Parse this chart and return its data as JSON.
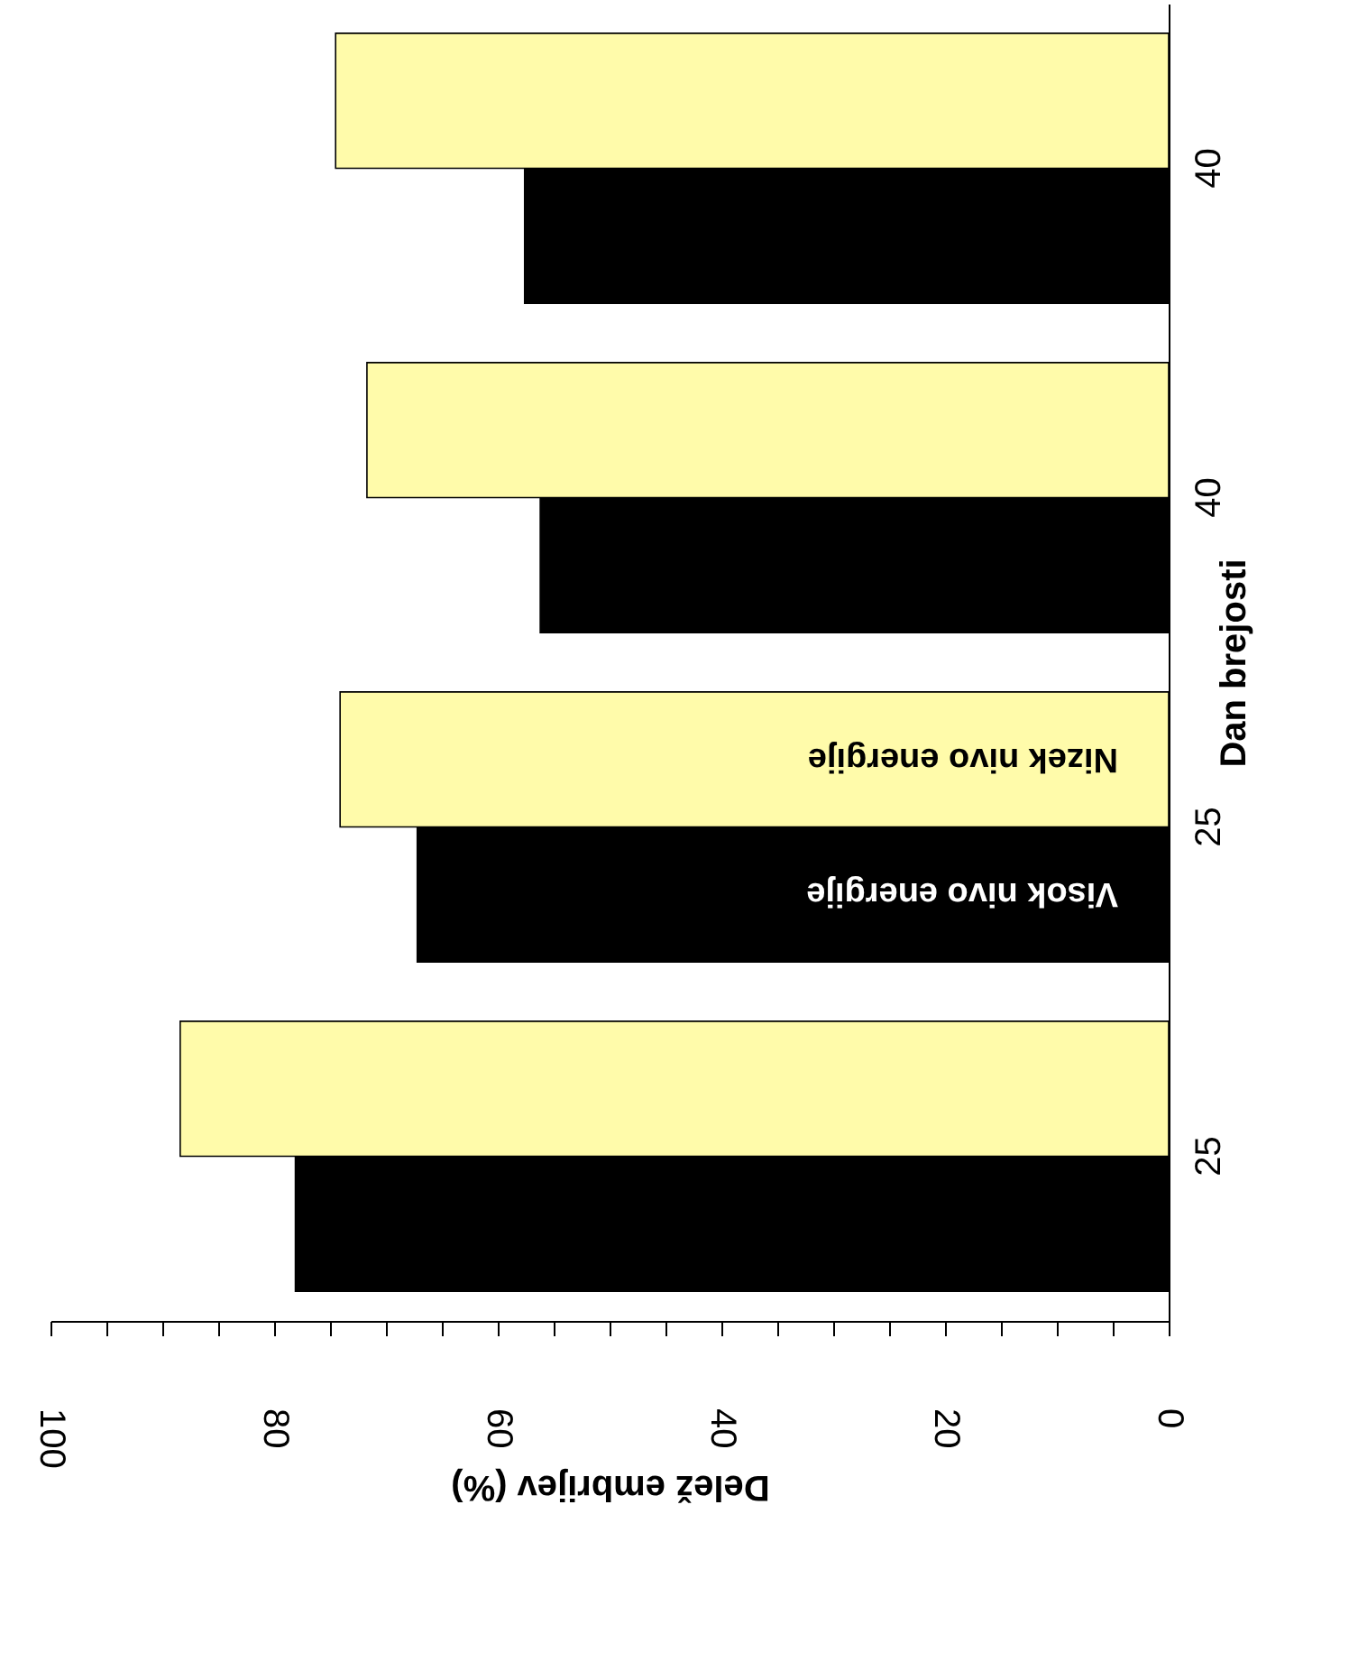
{
  "chart_data": {
    "type": "bar",
    "orientation": "horizontal",
    "xlabel": "Delež embrijev (%)",
    "ylabel": "Dan brejosti",
    "categories": [
      "40",
      "40",
      "25",
      "25"
    ],
    "series": [
      {
        "name": "Visok nivo energije",
        "color": "#000000",
        "values": [
          57.6,
          56.2,
          67.2,
          78.1
        ]
      },
      {
        "name": "Nizek nivo energije",
        "color": "#fffbaa",
        "values": [
          74.5,
          71.7,
          74.1,
          88.4
        ]
      }
    ],
    "xlim": [
      100,
      0
    ],
    "xticks": [
      0,
      {
        "value": 5,
        "label": null
      },
      {
        "value": 10,
        "label": null
      },
      {
        "value": 15,
        "label": null
      },
      20,
      {
        "value": 25,
        "label": null
      },
      {
        "value": 30,
        "label": null
      },
      {
        "value": 35,
        "label": null
      },
      40,
      {
        "value": 45,
        "label": null
      },
      {
        "value": 50,
        "label": null
      },
      {
        "value": 55,
        "label": null
      },
      60,
      {
        "value": 65,
        "label": null
      },
      {
        "value": 70,
        "label": null
      },
      {
        "value": 75,
        "label": null
      },
      80,
      {
        "value": 85,
        "label": null
      },
      {
        "value": 90,
        "label": null
      },
      {
        "value": 95,
        "label": null
      },
      100
    ],
    "grid": false
  }
}
